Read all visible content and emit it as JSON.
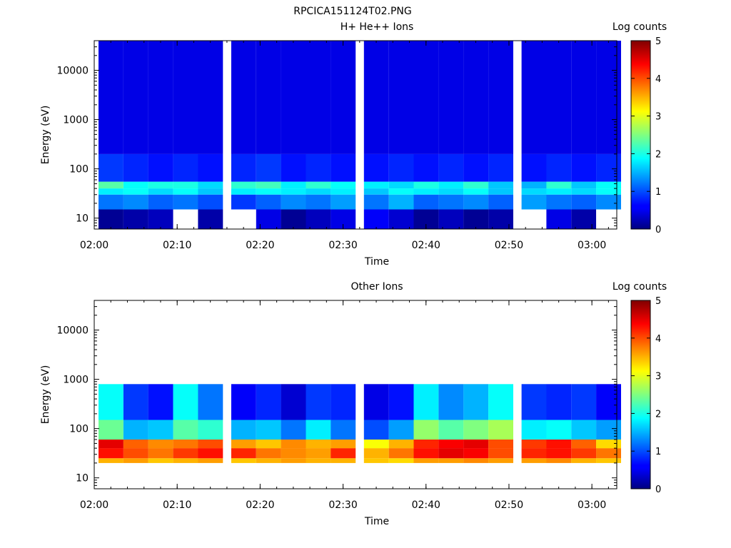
{
  "figure_title": "RPCICA151124T02.PNG",
  "chart_data": [
    {
      "type": "heatmap",
      "title": "H+ He++ Ions",
      "xlabel": "Time",
      "ylabel": "Energy (eV)",
      "yscale": "log",
      "xlim": [
        "02:00",
        "03:03"
      ],
      "ylim": [
        6,
        40000
      ],
      "x_ticks": [
        "02:00",
        "02:10",
        "02:20",
        "02:30",
        "02:40",
        "02:50",
        "03:00"
      ],
      "y_ticks": [
        10,
        100,
        1000,
        10000
      ],
      "y_tick_labels": [
        "10",
        "100",
        "1000",
        "10000"
      ],
      "time_bins": [
        "02:00",
        "02:03",
        "02:06",
        "02:09",
        "02:12",
        "02:16",
        "02:19",
        "02:22",
        "02:25",
        "02:28",
        "02:32",
        "02:35",
        "02:38",
        "02:41",
        "02:44",
        "02:47",
        "02:51",
        "02:54",
        "02:57",
        "03:00"
      ],
      "energy_bands_eV": [
        {
          "band": "6-15",
          "log_counts": [
            0.1,
            0.2,
            0.3,
            0,
            0.2,
            0,
            0.5,
            0.1,
            0.3,
            0.5,
            0.6,
            0.4,
            0.1,
            0.3,
            0.1,
            0.2,
            0,
            0.5,
            0.2,
            0
          ]
        },
        {
          "band": "15-30",
          "log_counts": [
            1.2,
            1.3,
            1.1,
            1.2,
            1.0,
            0.9,
            1.1,
            1.3,
            1.2,
            1.4,
            1.2,
            1.5,
            1.1,
            1.2,
            1.3,
            1.1,
            1.4,
            1.2,
            1.1,
            1.3
          ]
        },
        {
          "band": "30-40",
          "log_counts": [
            1.8,
            1.9,
            1.7,
            1.9,
            1.6,
            1.8,
            1.9,
            1.8,
            1.7,
            1.8,
            1.6,
            1.9,
            1.8,
            1.7,
            1.9,
            1.6,
            1.7,
            1.8,
            1.7,
            1.9
          ]
        },
        {
          "band": "40-55",
          "log_counts": [
            2.3,
            1.9,
            2.0,
            2.0,
            1.7,
            2.1,
            2.2,
            1.8,
            2.1,
            1.9,
            1.8,
            1.7,
            2.0,
            1.8,
            2.1,
            1.6,
            1.5,
            2.1,
            1.6,
            1.9
          ]
        },
        {
          "band": "55-200",
          "log_counts": [
            0.9,
            0.8,
            0.7,
            0.8,
            0.7,
            0.8,
            0.9,
            0.7,
            0.8,
            0.7,
            0.7,
            0.8,
            0.7,
            0.8,
            0.7,
            0.8,
            0.7,
            0.8,
            0.7,
            0.8
          ]
        },
        {
          "band": "200-40000",
          "log_counts": [
            0.5,
            0.5,
            0.5,
            0.5,
            0.5,
            0.5,
            0.5,
            0.5,
            0.5,
            0.5,
            0.5,
            0.5,
            0.5,
            0.5,
            0.5,
            0.5,
            0.5,
            0.5,
            0.5,
            0.5
          ]
        }
      ],
      "colorbar": {
        "label": "Log counts",
        "min": 0,
        "max": 5,
        "ticks": [
          0,
          1,
          2,
          3,
          4,
          5
        ],
        "colormap": "jet"
      }
    },
    {
      "type": "heatmap",
      "title": "Other Ions",
      "xlabel": "Time",
      "ylabel": "Energy (eV)",
      "yscale": "log",
      "xlim": [
        "02:00",
        "03:03"
      ],
      "ylim": [
        6,
        40000
      ],
      "x_ticks": [
        "02:00",
        "02:10",
        "02:20",
        "02:30",
        "02:40",
        "02:50",
        "03:00"
      ],
      "y_ticks": [
        10,
        100,
        1000,
        10000
      ],
      "y_tick_labels": [
        "10",
        "100",
        "1000",
        "10000"
      ],
      "time_bins": [
        "02:00",
        "02:03",
        "02:06",
        "02:09",
        "02:12",
        "02:16",
        "02:19",
        "02:22",
        "02:25",
        "02:28",
        "02:32",
        "02:35",
        "02:38",
        "02:41",
        "02:44",
        "02:47",
        "02:51",
        "02:54",
        "02:57",
        "03:00"
      ],
      "energy_bands_eV": [
        {
          "band": "20-25",
          "log_counts": [
            3.5,
            3.6,
            3.4,
            3.5,
            3.6,
            3.4,
            3.5,
            3.6,
            3.5,
            3.5,
            3.4,
            3.3,
            3.6,
            3.6,
            3.7,
            3.6,
            3.6,
            3.7,
            3.5,
            3.4
          ]
        },
        {
          "band": "25-40",
          "log_counts": [
            4.3,
            4.0,
            3.8,
            4.1,
            4.3,
            4.2,
            3.8,
            3.7,
            3.6,
            4.2,
            3.5,
            3.8,
            4.3,
            4.5,
            4.4,
            4.0,
            4.2,
            4.3,
            4.1,
            3.8
          ]
        },
        {
          "band": "40-60",
          "log_counts": [
            4.5,
            3.9,
            3.7,
            3.8,
            4.0,
            3.6,
            3.4,
            3.7,
            3.5,
            3.6,
            3.1,
            3.5,
            4.2,
            4.4,
            4.5,
            4.0,
            4.1,
            4.3,
            3.9,
            3.3
          ]
        },
        {
          "band": "60-150",
          "log_counts": [
            2.4,
            1.5,
            1.6,
            2.3,
            2.1,
            1.5,
            1.6,
            1.2,
            1.8,
            1.2,
            1.0,
            1.4,
            2.6,
            2.3,
            2.5,
            2.7,
            1.8,
            1.9,
            1.6,
            1.4
          ]
        },
        {
          "band": "150-800",
          "log_counts": [
            1.9,
            0.9,
            0.7,
            1.9,
            1.2,
            0.6,
            0.8,
            0.4,
            0.9,
            0.8,
            0.5,
            0.7,
            1.8,
            1.3,
            1.5,
            1.9,
            0.9,
            0.8,
            0.9,
            0.6
          ]
        }
      ],
      "colorbar": {
        "label": "Log counts",
        "min": 0,
        "max": 5,
        "ticks": [
          0,
          1,
          2,
          3,
          4,
          5
        ],
        "colormap": "jet"
      }
    }
  ]
}
